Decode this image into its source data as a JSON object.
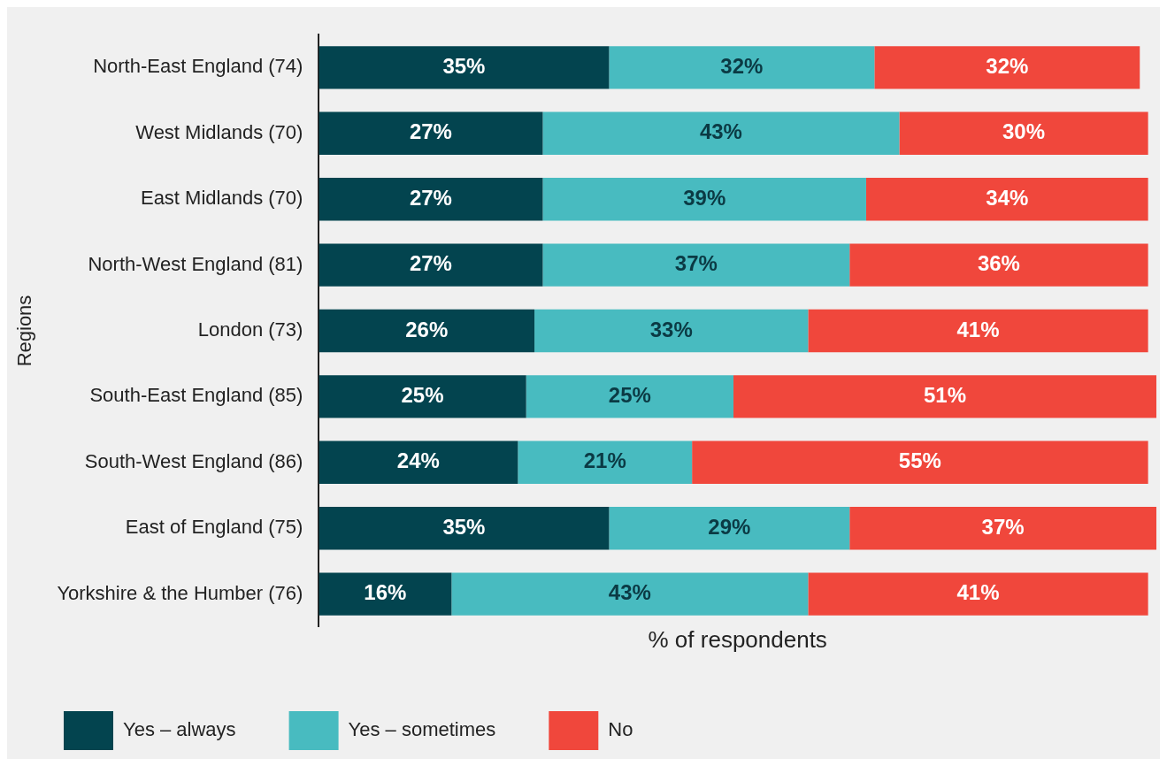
{
  "chart_data": {
    "type": "bar",
    "orientation": "horizontal",
    "stacked": true,
    "xlabel": "% of respondents",
    "ylabel": "Regions",
    "categories": [
      "North-East England (74)",
      "West Midlands (70)",
      "East Midlands (70)",
      "North-West England (81)",
      "London (73)",
      "South-East England (85)",
      "South-West England (86)",
      "East of England (75)",
      "Yorkshire & the Humber (76)"
    ],
    "series": [
      {
        "name": "Yes – always",
        "color": "#03444f",
        "values": [
          35,
          27,
          27,
          27,
          26,
          25,
          24,
          35,
          16
        ],
        "value_labels": [
          "35%",
          "27%",
          "27%",
          "27%",
          "26%",
          "25%",
          "24%",
          "35%",
          "16%"
        ]
      },
      {
        "name": "Yes – sometimes",
        "color": "#48bbc0",
        "values": [
          32,
          43,
          39,
          37,
          33,
          25,
          21,
          29,
          43
        ],
        "value_labels": [
          "32%",
          "43%",
          "39%",
          "37%",
          "33%",
          "25%",
          "21%",
          "29%",
          "43%"
        ]
      },
      {
        "name": "No",
        "color": "#f0473c",
        "values": [
          32,
          30,
          34,
          36,
          41,
          51,
          55,
          37,
          41
        ],
        "value_labels": [
          "32%",
          "30%",
          "34%",
          "36%",
          "41%",
          "51%",
          "55%",
          "37%",
          "41%"
        ]
      }
    ],
    "grid": false,
    "legend": "bottom",
    "tick_labels": "y"
  }
}
